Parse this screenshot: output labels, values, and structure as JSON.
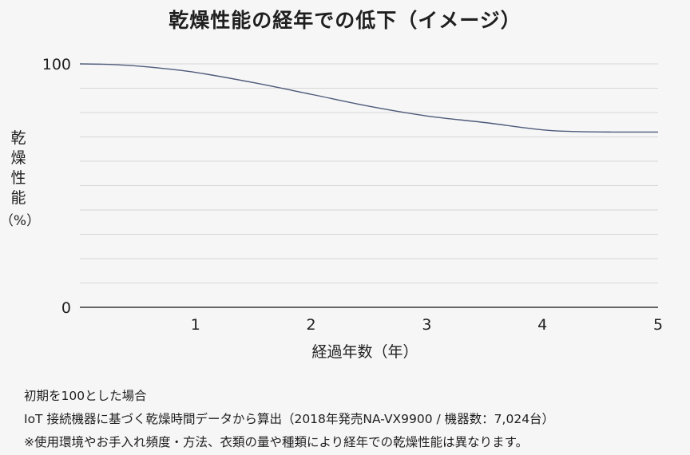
{
  "title": "乾燥性能の経年での低下（イメージ）",
  "chart_data": {
    "type": "line",
    "title": "乾燥性能の経年での低下（イメージ）",
    "xlabel": "経過年数（年）",
    "ylabel_chars": [
      "乾",
      "燥",
      "性",
      "能"
    ],
    "ylabel_unit": "（%）",
    "xlim": [
      0,
      5
    ],
    "ylim": [
      0,
      100
    ],
    "xticks": [
      1,
      2,
      3,
      4,
      5
    ],
    "yticks": [
      0,
      100
    ],
    "grid": true,
    "series": [
      {
        "x": [
          0,
          0.3,
          0.6,
          1.0,
          1.5,
          2.0,
          2.5,
          3.0,
          3.5,
          4.0,
          4.3,
          4.6,
          5.0
        ],
        "y": [
          100,
          99.7,
          98.7,
          96.5,
          92.3,
          87.5,
          82.6,
          78.6,
          75.9,
          72.9,
          72.2,
          72.0,
          72.0
        ],
        "color": "#4d5a7a"
      }
    ]
  },
  "notes": [
    "初期を100とした場合",
    "IoT 接続機器に基づく乾燥時間データから算出（2018年発売NA-VX9900 / 機器数：7,024台）",
    "※使用環境やお手入れ頻度・方法、衣類の量や種類により経年での乾燥性能は異なります。"
  ]
}
